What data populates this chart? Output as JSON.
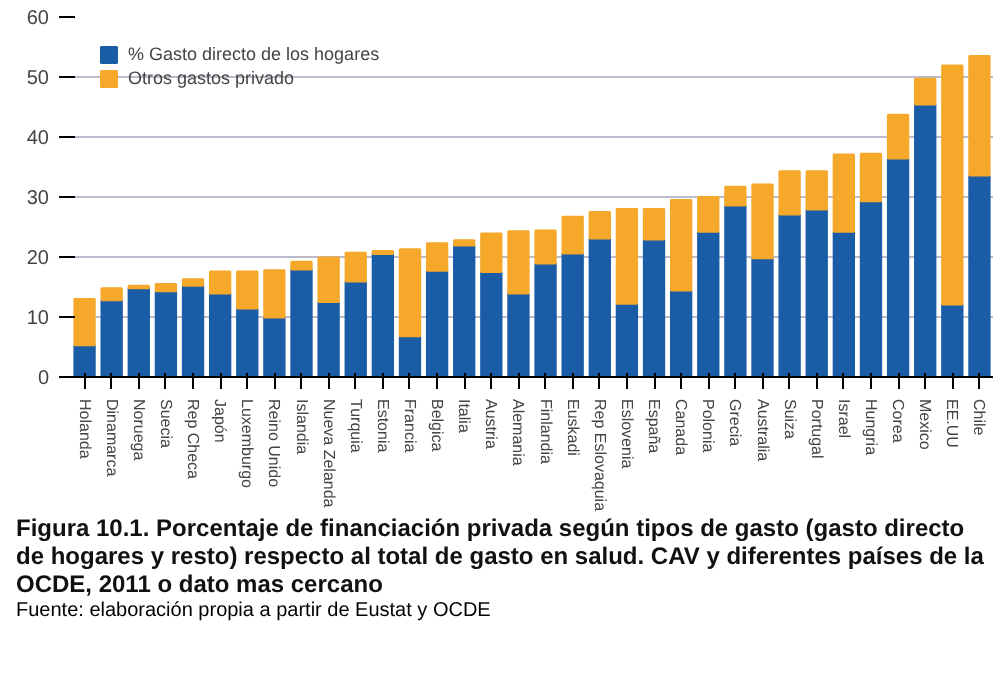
{
  "chart_data": {
    "type": "bar",
    "stacked": true,
    "title": "Figura 10.1.  Porcentaje de financiación privada según tipos de gasto (gasto directo de hogares y resto) respecto al total de gasto en salud. CAV y diferentes países de la OCDE, 2011 o dato mas cercano",
    "annotations": [
      "Fuente: elaboración propia a partir de Eustat y OCDE"
    ],
    "categories": [
      "Holanda",
      "Dinamarca",
      "Noruega",
      "Suecia",
      "Rep Checa",
      "Japón",
      "Luxemburgo",
      "Reino Unido",
      "Islandia",
      "Nueva Zelanda",
      "Turquia",
      "Estonia",
      "Francia",
      "Belgica",
      "Italia",
      "Austria",
      "Alemania",
      "Finlandia",
      "Euskadi",
      "Rep Eslovaquia",
      "Eslovenia",
      "España",
      "Canada",
      "Polonia",
      "Grecia",
      "Australia",
      "Suiza",
      "Portugal",
      "Israel",
      "Hungria",
      "Corea",
      "Mexico",
      "EE.UU",
      "Chile"
    ],
    "series": [
      {
        "name": "% Gasto directo de los hogares",
        "color": "#1a5da6",
        "values": [
          5.3,
          12.8,
          14.8,
          14.3,
          15.2,
          13.9,
          11.4,
          9.9,
          17.9,
          12.5,
          15.9,
          20.5,
          6.8,
          17.7,
          21.9,
          17.5,
          13.9,
          18.9,
          20.6,
          23.1,
          12.2,
          22.9,
          14.4,
          24.2,
          28.6,
          19.8,
          27.1,
          27.9,
          24.2,
          29.3,
          36.4,
          45.4,
          12.1,
          33.6
        ]
      },
      {
        "name": "Otros gastos privado",
        "color": "#f5a82a",
        "values": [
          7.7,
          2.0,
          0.4,
          1.2,
          1.1,
          3.7,
          6.2,
          7.9,
          1.3,
          7.4,
          4.8,
          0.5,
          14.5,
          4.6,
          0.9,
          6.4,
          10.4,
          5.5,
          6.1,
          4.4,
          15.8,
          5.1,
          15.1,
          5.8,
          3.1,
          12.3,
          7.2,
          6.4,
          12.9,
          7.9,
          7.3,
          4.3,
          39.8,
          19.9
        ]
      }
    ],
    "ylim": [
      0,
      60
    ],
    "yticks": [
      0,
      10,
      20,
      30,
      40,
      50,
      60
    ],
    "grid": "y",
    "legend": "top left"
  }
}
